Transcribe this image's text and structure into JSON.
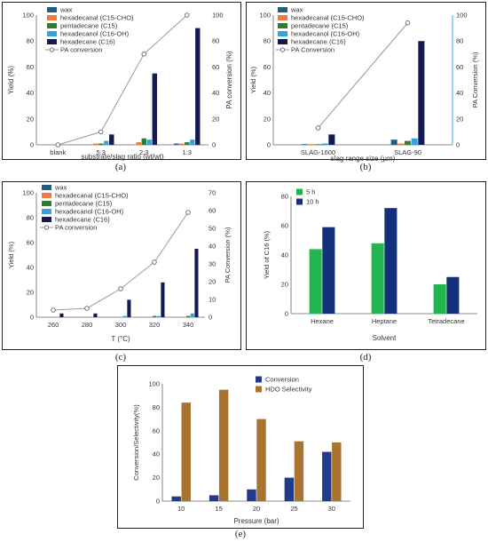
{
  "charts": [
    {
      "id": "a",
      "panel_label": "(a)",
      "type": "bar+line",
      "categories": [
        "blank",
        "5:3",
        "2:3",
        "1:3"
      ],
      "xlabel": "substrate/slag ratio (wt/wt)",
      "ylabel": "Yield (%)",
      "y2label": "PA conversion (%)",
      "ylim": [
        0,
        100
      ],
      "yticks": [
        0,
        20,
        40,
        60,
        80,
        100
      ],
      "y2lim": [
        0,
        100
      ],
      "y2ticks": [
        0,
        20,
        40,
        60,
        80,
        100
      ],
      "series": [
        {
          "name": "wax",
          "color": "#1f5f82",
          "values": [
            0,
            0,
            0,
            1
          ]
        },
        {
          "name": "hexadecanal (C15-CHO)",
          "color": "#f07b3a",
          "values": [
            0,
            1,
            2,
            1
          ]
        },
        {
          "name": "pentadecane (C15)",
          "color": "#2e7d32",
          "values": [
            0,
            1,
            5,
            2
          ]
        },
        {
          "name": "hexadecanol (C16-OH)",
          "color": "#33a3e0",
          "values": [
            0,
            3,
            4,
            4
          ]
        },
        {
          "name": "hexadecane (C16)",
          "color": "#151a52",
          "values": [
            0,
            8,
            55,
            90
          ]
        }
      ],
      "line": {
        "name": "PA conversion",
        "color": "#9a9a9a",
        "values": [
          0,
          10,
          70,
          100
        ]
      }
    },
    {
      "id": "b",
      "panel_label": "(b)",
      "type": "bar+line",
      "categories": [
        "SLAG-1600",
        "SLAG-90"
      ],
      "xlabel": "slag range size (µm)",
      "ylabel": "Yield (%)",
      "y2label": "PA Conversion (%)",
      "ylim": [
        0,
        100
      ],
      "yticks": [
        0,
        20,
        40,
        60,
        80,
        100
      ],
      "y2lim": [
        0,
        100
      ],
      "y2ticks": [
        0,
        20,
        40,
        60,
        80,
        100
      ],
      "series": [
        {
          "name": "wax",
          "color": "#1f5f82",
          "values": [
            0.5,
            4
          ]
        },
        {
          "name": "hexadecanal (C15-CHO)",
          "color": "#f07b3a",
          "values": [
            0.5,
            1
          ]
        },
        {
          "name": "pentadecane (C15)",
          "color": "#2e7d32",
          "values": [
            0.5,
            3
          ]
        },
        {
          "name": "hexadecanol (C16-OH)",
          "color": "#33a3e0",
          "values": [
            1,
            5
          ]
        },
        {
          "name": "hexadecane (C16)",
          "color": "#151a52",
          "values": [
            8,
            80
          ]
        }
      ],
      "line": {
        "name": "PA Conversion",
        "color": "#9a9a9a",
        "values": [
          13,
          94
        ]
      }
    },
    {
      "id": "c",
      "panel_label": "(c)",
      "type": "bar+line",
      "categories": [
        "260",
        "280",
        "300",
        "320",
        "340"
      ],
      "xlabel": "T (°C)",
      "ylabel": "Yield (%)",
      "y2label": "PA Conversion (%)",
      "ylim": [
        0,
        100
      ],
      "yticks": [
        0,
        20,
        40,
        60,
        80,
        100
      ],
      "y2lim": [
        0,
        70
      ],
      "y2ticks": [
        0,
        10,
        20,
        30,
        40,
        50,
        60,
        70
      ],
      "series": [
        {
          "name": "wax",
          "color": "#1f5f82",
          "values": [
            0,
            0,
            0,
            0,
            0
          ]
        },
        {
          "name": "hexadecanal (C15-CHO)",
          "color": "#f07b3a",
          "values": [
            0,
            0,
            0,
            0,
            0
          ]
        },
        {
          "name": "pentadecane (C15)",
          "color": "#2e7d32",
          "values": [
            0,
            0,
            0,
            1,
            1
          ]
        },
        {
          "name": "hexadecanol (C16-OH)",
          "color": "#33a3e0",
          "values": [
            0,
            0,
            1,
            1,
            3
          ]
        },
        {
          "name": "hexadecane (C16)",
          "color": "#151a52",
          "values": [
            3,
            3,
            14,
            28,
            55
          ]
        }
      ],
      "line": {
        "name": "PA conversion",
        "color": "#9a9a9a",
        "values": [
          4,
          5,
          16,
          31,
          59
        ]
      }
    },
    {
      "id": "d",
      "panel_label": "(d)",
      "type": "bar",
      "categories": [
        "Hexane",
        "Heptane",
        "Tetradecane"
      ],
      "xlabel": "Solvent",
      "ylabel": "Yield of C16 (%)",
      "ylim": [
        0,
        80
      ],
      "yticks": [
        0,
        20,
        40,
        60,
        80
      ],
      "series": [
        {
          "name": "5 h",
          "color": "#22b550",
          "values": [
            44,
            48,
            20
          ]
        },
        {
          "name": "10 h",
          "color": "#15307a",
          "values": [
            59,
            72,
            25
          ]
        }
      ]
    },
    {
      "id": "e",
      "panel_label": "(e)",
      "type": "bar",
      "categories": [
        "10",
        "15",
        "20",
        "25",
        "30"
      ],
      "xlabel": "Pressure (bar)",
      "ylabel": "Conversion/Selectivity(%)",
      "ylim": [
        0,
        100
      ],
      "yticks": [
        0,
        20,
        40,
        60,
        80,
        100
      ],
      "series": [
        {
          "name": "Conversion",
          "color": "#203b8c",
          "values": [
            4,
            5,
            10,
            20,
            42
          ]
        },
        {
          "name": "HDO Selectivity",
          "color": "#a8742f",
          "values": [
            84,
            95,
            70,
            51,
            50
          ]
        }
      ]
    }
  ]
}
